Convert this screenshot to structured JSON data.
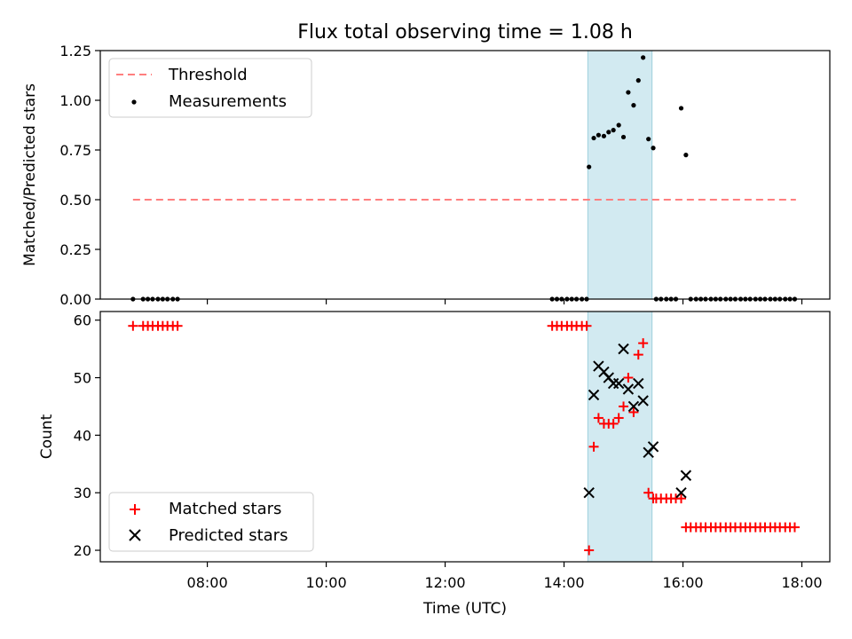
{
  "chart_data": {
    "title": "Flux total observing time = 1.08 h",
    "xlabel": "Time (UTC)",
    "x_ticks": [
      "08:00",
      "10:00",
      "12:00",
      "14:00",
      "16:00",
      "18:00"
    ],
    "x_tick_hours": [
      8,
      10,
      12,
      14,
      16,
      18
    ],
    "xlim_hours": [
      6.2,
      18.47
    ],
    "highlight_span_hours": [
      14.4,
      15.48
    ],
    "highlight_color": "#add8e6",
    "panels": [
      {
        "type": "scatter",
        "ylabel": "Matched/Predicted stars",
        "ylim": [
          0,
          1.25
        ],
        "y_ticks": [
          0.0,
          0.25,
          0.5,
          0.75,
          1.0,
          1.25
        ],
        "y_tick_labels": [
          "0.00",
          "0.25",
          "0.50",
          "0.75",
          "1.00",
          "1.25"
        ],
        "threshold": {
          "name": "Threshold",
          "value": 0.5,
          "x_range": [
            6.75,
            17.9
          ],
          "color": "#ff7f7f"
        },
        "series": [
          {
            "name": "Measurements",
            "color": "#000000",
            "marker": "dot",
            "points": [
              [
                6.75,
                0
              ],
              [
                6.92,
                0
              ],
              [
                7.0,
                0
              ],
              [
                7.08,
                0
              ],
              [
                7.17,
                0
              ],
              [
                7.25,
                0
              ],
              [
                7.33,
                0
              ],
              [
                7.42,
                0
              ],
              [
                7.5,
                0
              ],
              [
                13.8,
                0
              ],
              [
                13.88,
                0
              ],
              [
                13.96,
                0
              ],
              [
                14.05,
                0
              ],
              [
                14.13,
                0
              ],
              [
                14.21,
                0
              ],
              [
                14.3,
                0
              ],
              [
                14.38,
                0
              ],
              [
                14.42,
                0.665
              ],
              [
                14.5,
                0.81
              ],
              [
                14.58,
                0.825
              ],
              [
                14.67,
                0.82
              ],
              [
                14.75,
                0.84
              ],
              [
                14.83,
                0.85
              ],
              [
                14.92,
                0.875
              ],
              [
                15.0,
                0.815
              ],
              [
                15.08,
                1.04
              ],
              [
                15.17,
                0.975
              ],
              [
                15.25,
                1.1
              ],
              [
                15.33,
                1.215
              ],
              [
                15.42,
                0.805
              ],
              [
                15.5,
                0.76
              ],
              [
                15.55,
                0
              ],
              [
                15.63,
                0
              ],
              [
                15.72,
                0
              ],
              [
                15.8,
                0
              ],
              [
                15.88,
                0
              ],
              [
                15.97,
                0.96
              ],
              [
                16.05,
                0.725
              ],
              [
                16.13,
                0
              ],
              [
                16.22,
                0
              ],
              [
                16.3,
                0
              ],
              [
                16.38,
                0
              ],
              [
                16.47,
                0
              ],
              [
                16.55,
                0
              ],
              [
                16.63,
                0
              ],
              [
                16.72,
                0
              ],
              [
                16.8,
                0
              ],
              [
                16.88,
                0
              ],
              [
                16.97,
                0
              ],
              [
                17.05,
                0
              ],
              [
                17.13,
                0
              ],
              [
                17.22,
                0
              ],
              [
                17.3,
                0
              ],
              [
                17.38,
                0
              ],
              [
                17.47,
                0
              ],
              [
                17.55,
                0
              ],
              [
                17.63,
                0
              ],
              [
                17.72,
                0
              ],
              [
                17.8,
                0
              ],
              [
                17.88,
                0
              ]
            ]
          }
        ],
        "legend": {
          "placement": "upper left",
          "entries": [
            "Threshold",
            "Measurements"
          ]
        }
      },
      {
        "type": "scatter",
        "ylabel": "Count",
        "ylim": [
          18,
          61.5
        ],
        "y_ticks": [
          20,
          30,
          40,
          50,
          60
        ],
        "y_tick_labels": [
          "20",
          "30",
          "40",
          "50",
          "60"
        ],
        "series": [
          {
            "name": "Matched stars",
            "color": "#ff0000",
            "marker": "plus",
            "points": [
              [
                6.75,
                59
              ],
              [
                6.92,
                59
              ],
              [
                7.0,
                59
              ],
              [
                7.08,
                59
              ],
              [
                7.17,
                59
              ],
              [
                7.25,
                59
              ],
              [
                7.33,
                59
              ],
              [
                7.42,
                59
              ],
              [
                7.5,
                59
              ],
              [
                13.8,
                59
              ],
              [
                13.88,
                59
              ],
              [
                13.96,
                59
              ],
              [
                14.05,
                59
              ],
              [
                14.13,
                59
              ],
              [
                14.21,
                59
              ],
              [
                14.3,
                59
              ],
              [
                14.38,
                59
              ],
              [
                14.42,
                20
              ],
              [
                14.5,
                38
              ],
              [
                14.58,
                43
              ],
              [
                14.67,
                42
              ],
              [
                14.75,
                42
              ],
              [
                14.83,
                42
              ],
              [
                14.92,
                43
              ],
              [
                15.0,
                45
              ],
              [
                15.08,
                50
              ],
              [
                15.17,
                44
              ],
              [
                15.25,
                54
              ],
              [
                15.33,
                56
              ],
              [
                15.42,
                30
              ],
              [
                15.5,
                29
              ],
              [
                15.55,
                29
              ],
              [
                15.63,
                29
              ],
              [
                15.72,
                29
              ],
              [
                15.8,
                29
              ],
              [
                15.88,
                29
              ],
              [
                15.97,
                29
              ],
              [
                16.05,
                24
              ],
              [
                16.13,
                24
              ],
              [
                16.22,
                24
              ],
              [
                16.3,
                24
              ],
              [
                16.38,
                24
              ],
              [
                16.47,
                24
              ],
              [
                16.55,
                24
              ],
              [
                16.63,
                24
              ],
              [
                16.72,
                24
              ],
              [
                16.8,
                24
              ],
              [
                16.88,
                24
              ],
              [
                16.97,
                24
              ],
              [
                17.05,
                24
              ],
              [
                17.13,
                24
              ],
              [
                17.22,
                24
              ],
              [
                17.3,
                24
              ],
              [
                17.38,
                24
              ],
              [
                17.47,
                24
              ],
              [
                17.55,
                24
              ],
              [
                17.63,
                24
              ],
              [
                17.72,
                24
              ],
              [
                17.8,
                24
              ],
              [
                17.88,
                24
              ]
            ]
          },
          {
            "name": "Predicted stars",
            "color": "#000000",
            "marker": "x",
            "points": [
              [
                14.42,
                30
              ],
              [
                14.5,
                47
              ],
              [
                14.58,
                52
              ],
              [
                14.67,
                51
              ],
              [
                14.75,
                50
              ],
              [
                14.83,
                49
              ],
              [
                14.92,
                49
              ],
              [
                15.0,
                55
              ],
              [
                15.08,
                48
              ],
              [
                15.17,
                45
              ],
              [
                15.25,
                49
              ],
              [
                15.33,
                46
              ],
              [
                15.42,
                37
              ],
              [
                15.5,
                38
              ],
              [
                15.97,
                30
              ],
              [
                16.05,
                33
              ]
            ]
          }
        ],
        "legend": {
          "placement": "lower left",
          "entries": [
            "Matched stars",
            "Predicted stars"
          ]
        }
      }
    ]
  }
}
